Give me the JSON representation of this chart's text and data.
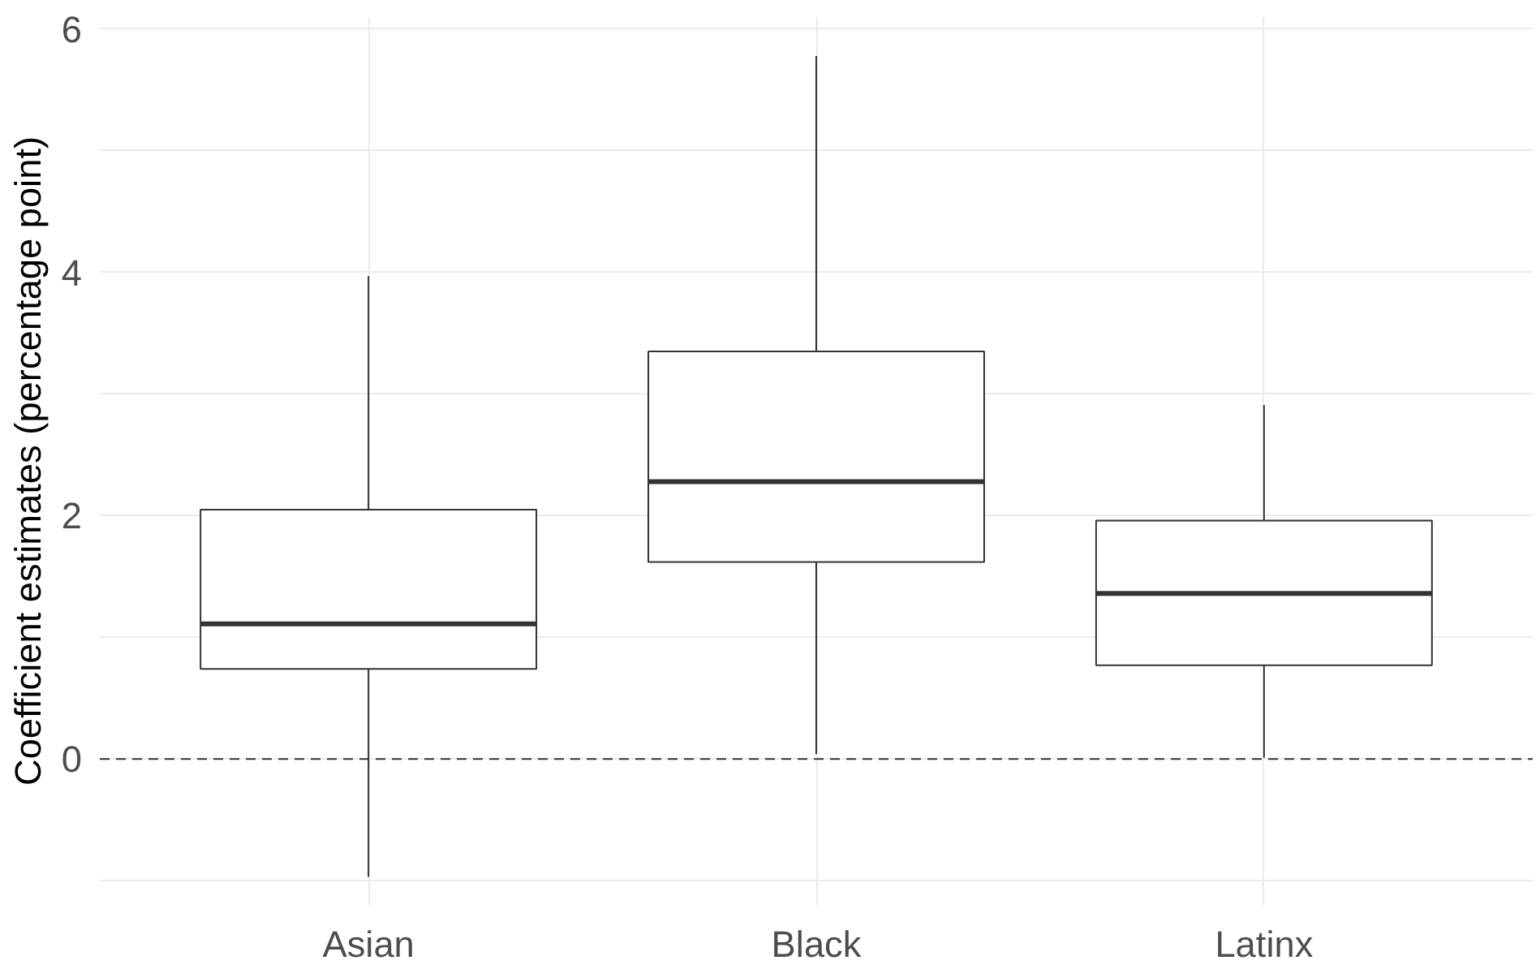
{
  "chart_data": {
    "type": "box",
    "ylabel": "Coefficient estimates (percentage point)",
    "categories": [
      "Asian",
      "Black",
      "Latinx"
    ],
    "boxes": [
      {
        "low": -0.97,
        "q1": 0.74,
        "median": 1.11,
        "q3": 2.05,
        "high": 3.97
      },
      {
        "low": 0.04,
        "q1": 1.62,
        "median": 2.28,
        "q3": 3.35,
        "high": 5.78
      },
      {
        "low": 0.01,
        "q1": 0.77,
        "median": 1.36,
        "q3": 1.96,
        "high": 2.91
      }
    ],
    "color": "#333333",
    "ylim": [
      -1.2,
      6.1
    ],
    "yticks": [
      {
        "value": -1,
        "label": null
      },
      0,
      {
        "value": 1,
        "label": null
      },
      2,
      {
        "value": 3,
        "label": null
      },
      4,
      {
        "value": 5,
        "label": null
      },
      6
    ],
    "grid": true,
    "ref_lines": [
      {
        "axis": "y",
        "value": 0,
        "line_style": "dashed",
        "color": "#333333"
      }
    ]
  }
}
